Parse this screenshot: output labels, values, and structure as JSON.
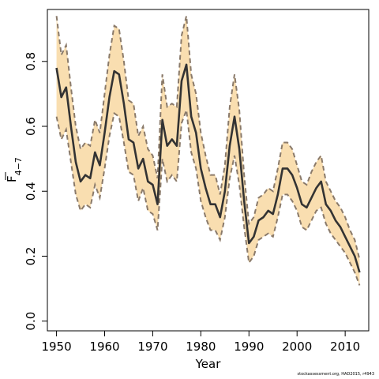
{
  "chart_data": {
    "type": "line",
    "xlabel": "Year",
    "ylabel_main": "F",
    "ylabel_sub": "4−7",
    "xlim": [
      1948.1,
      2014.9
    ],
    "ylim": [
      -0.03,
      0.96
    ],
    "x_ticks": [
      1950,
      1960,
      1970,
      1980,
      1990,
      2000,
      2010
    ],
    "y_ticks": [
      0.0,
      0.2,
      0.4,
      0.6,
      0.8
    ],
    "y_tick_labels": [
      "0.0",
      "0.2",
      "0.4",
      "0.6",
      "0.8"
    ],
    "grid": false,
    "colors": {
      "band": "#f9deb0",
      "line": "#333333",
      "bound": "#8a7a6a"
    },
    "x": [
      1950,
      1951,
      1952,
      1953,
      1954,
      1955,
      1956,
      1957,
      1958,
      1959,
      1960,
      1961,
      1962,
      1963,
      1964,
      1965,
      1966,
      1967,
      1968,
      1969,
      1970,
      1971,
      1972,
      1973,
      1974,
      1975,
      1976,
      1977,
      1978,
      1979,
      1980,
      1981,
      1982,
      1983,
      1984,
      1985,
      1986,
      1987,
      1988,
      1989,
      1990,
      1991,
      1992,
      1993,
      1994,
      1995,
      1996,
      1997,
      1998,
      1999,
      2000,
      2001,
      2002,
      2003,
      2004,
      2005,
      2006,
      2007,
      2008,
      2009,
      2010,
      2011,
      2012,
      2013
    ],
    "series": [
      {
        "name": "estimate",
        "values": [
          0.78,
          0.69,
          0.72,
          0.6,
          0.49,
          0.43,
          0.45,
          0.44,
          0.52,
          0.48,
          0.58,
          0.69,
          0.77,
          0.76,
          0.67,
          0.56,
          0.55,
          0.47,
          0.5,
          0.43,
          0.42,
          0.36,
          0.62,
          0.54,
          0.56,
          0.54,
          0.74,
          0.79,
          0.63,
          0.58,
          0.47,
          0.41,
          0.36,
          0.36,
          0.32,
          0.4,
          0.54,
          0.63,
          0.53,
          0.37,
          0.24,
          0.26,
          0.31,
          0.32,
          0.34,
          0.33,
          0.39,
          0.47,
          0.47,
          0.45,
          0.41,
          0.36,
          0.35,
          0.38,
          0.41,
          0.43,
          0.36,
          0.34,
          0.31,
          0.29,
          0.26,
          0.23,
          0.2,
          0.15
        ]
      },
      {
        "name": "upper",
        "values": [
          0.94,
          0.82,
          0.85,
          0.72,
          0.6,
          0.53,
          0.55,
          0.54,
          0.62,
          0.58,
          0.7,
          0.82,
          0.91,
          0.9,
          0.8,
          0.68,
          0.67,
          0.57,
          0.6,
          0.53,
          0.51,
          0.44,
          0.76,
          0.66,
          0.67,
          0.66,
          0.88,
          0.94,
          0.76,
          0.7,
          0.58,
          0.51,
          0.45,
          0.45,
          0.39,
          0.48,
          0.66,
          0.76,
          0.65,
          0.45,
          0.3,
          0.32,
          0.38,
          0.39,
          0.41,
          0.4,
          0.47,
          0.55,
          0.55,
          0.53,
          0.48,
          0.43,
          0.42,
          0.46,
          0.49,
          0.51,
          0.43,
          0.4,
          0.37,
          0.35,
          0.32,
          0.28,
          0.25,
          0.19
        ]
      },
      {
        "name": "lower",
        "values": [
          0.63,
          0.56,
          0.59,
          0.49,
          0.39,
          0.34,
          0.36,
          0.35,
          0.42,
          0.38,
          0.47,
          0.57,
          0.64,
          0.63,
          0.55,
          0.46,
          0.45,
          0.37,
          0.41,
          0.34,
          0.33,
          0.28,
          0.5,
          0.43,
          0.45,
          0.43,
          0.61,
          0.65,
          0.52,
          0.47,
          0.37,
          0.32,
          0.28,
          0.28,
          0.25,
          0.32,
          0.44,
          0.51,
          0.42,
          0.29,
          0.18,
          0.2,
          0.25,
          0.26,
          0.27,
          0.26,
          0.32,
          0.39,
          0.39,
          0.37,
          0.34,
          0.29,
          0.28,
          0.31,
          0.34,
          0.35,
          0.3,
          0.27,
          0.25,
          0.23,
          0.21,
          0.18,
          0.15,
          0.11
        ]
      }
    ]
  },
  "watermark": "stockassessment.org, HAD2015, r4943"
}
